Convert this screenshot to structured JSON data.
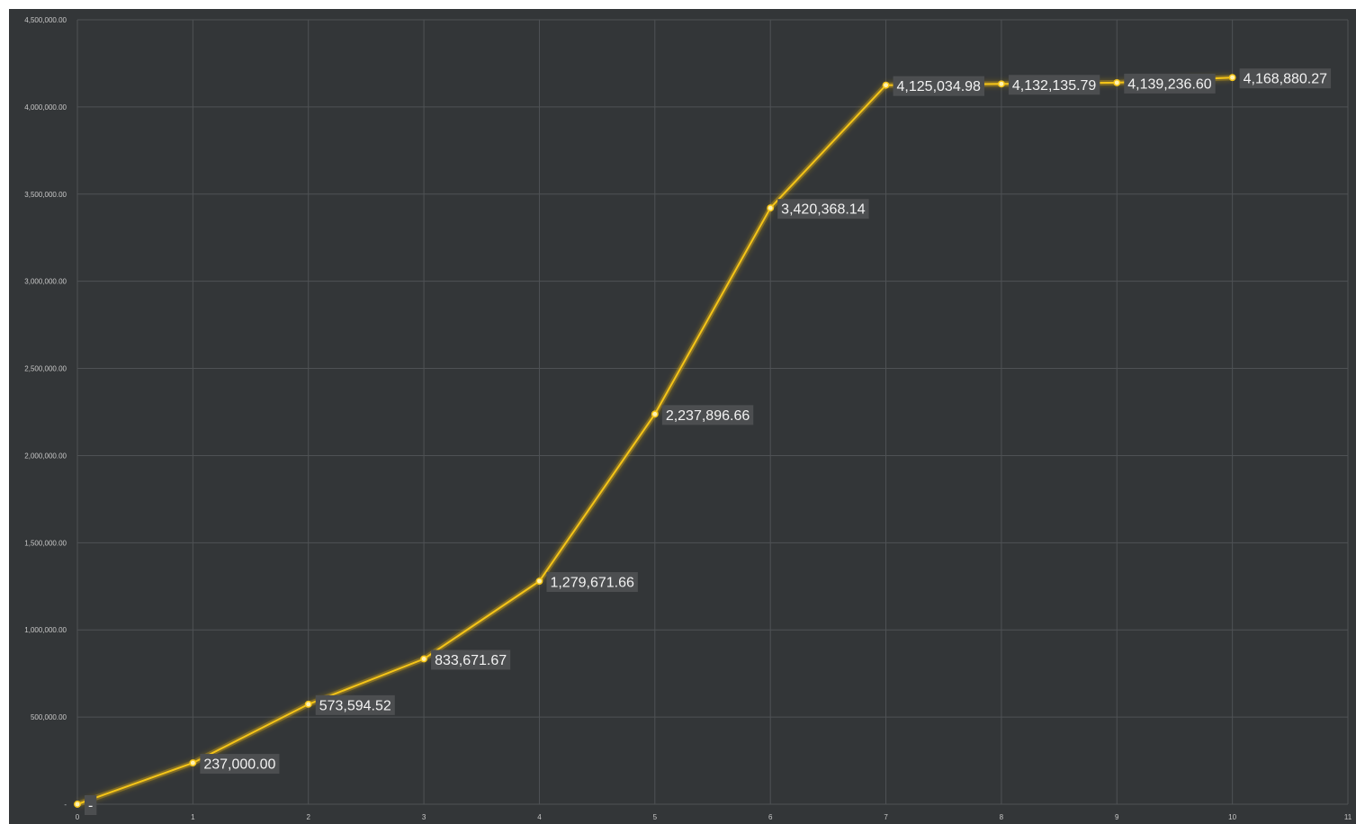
{
  "colors": {
    "background": "#333638",
    "plot_background": "#333638",
    "gridline": "#4f5255",
    "line": "#f5c518",
    "line_glow": "#d4a514",
    "label_box": "#4c4e50",
    "tick_text": "#c8c8c8",
    "label_text": "#f2f2f2"
  },
  "chart_data": {
    "type": "line",
    "title": "",
    "xlabel": "",
    "ylabel": "",
    "xlim": [
      0,
      11
    ],
    "ylim": [
      0,
      4500000
    ],
    "grid": true,
    "legend": "none",
    "x_ticks": [
      "0",
      "1",
      "2",
      "3",
      "4",
      "5",
      "6",
      "7",
      "8",
      "9",
      "10",
      "11"
    ],
    "y_ticks": [
      {
        "value": 0,
        "label": "-"
      },
      {
        "value": 500000,
        "label": "500,000.00"
      },
      {
        "value": 1000000,
        "label": "1,000,000.00"
      },
      {
        "value": 1500000,
        "label": "1,500,000.00"
      },
      {
        "value": 2000000,
        "label": "2,000,000.00"
      },
      {
        "value": 2500000,
        "label": "2,500,000.00"
      },
      {
        "value": 3000000,
        "label": "3,000,000.00"
      },
      {
        "value": 3500000,
        "label": "3,500,000.00"
      },
      {
        "value": 4000000,
        "label": "4,000,000.00"
      },
      {
        "value": 4500000,
        "label": "4,500,000.00"
      }
    ],
    "series": [
      {
        "x": [
          0,
          1,
          2,
          3,
          4,
          5,
          6,
          7,
          8,
          9,
          10
        ],
        "values": [
          0,
          237000.0,
          573594.52,
          833671.67,
          1279671.66,
          2237896.66,
          3420368.14,
          4125034.98,
          4132135.79,
          4139236.6,
          4168880.27
        ],
        "labels": [
          "-",
          "237,000.00",
          "573,594.52",
          "833,671.67",
          "1,279,671.66",
          "2,237,896.66",
          "3,420,368.14",
          "4,125,034.98",
          "4,132,135.79",
          "4,139,236.60",
          "4,168,880.27"
        ]
      }
    ]
  }
}
